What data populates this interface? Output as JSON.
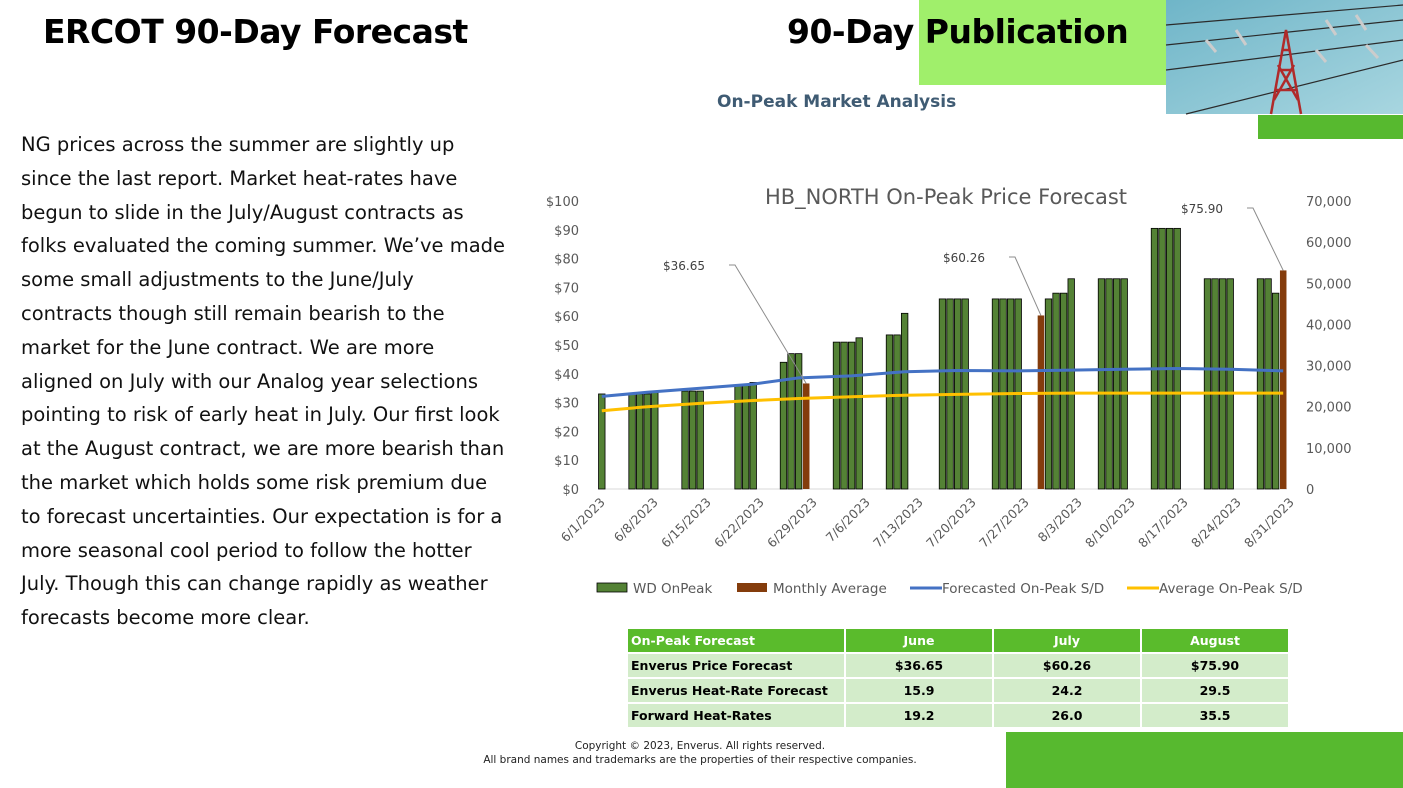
{
  "header": {
    "left_title": "ERCOT 90-Day Forecast",
    "right_title": "90-Day Publication",
    "subtitle": "On-Peak Market Analysis"
  },
  "commentary": "NG prices across the summer are slightly up since the last report. Market heat-rates have begun to slide in the July/August contracts as folks evaluated the coming summer. We’ve made some small adjustments to the June/July contracts though still remain bearish to the market for the June contract. We are more aligned on July with our Analog year selections pointing to risk of early heat in July. Our first look at the August contract, we are more bearish than the market which holds some risk premium due to forecast uncertainties. Our expectation is for a more seasonal cool period to follow the hotter July. Though this can change rapidly as weather forecasts become more clear.",
  "chart_data": {
    "type": "bar",
    "title": "HB_NORTH On-Peak Price Forecast",
    "x_tick_labels": [
      "6/1/2023",
      "6/8/2023",
      "6/15/2023",
      "6/22/2023",
      "6/29/2023",
      "7/6/2023",
      "7/13/2023",
      "7/20/2023",
      "7/27/2023",
      "8/3/2023",
      "8/10/2023",
      "8/17/2023",
      "8/24/2023",
      "8/31/2023"
    ],
    "y_left": {
      "ticks": [
        "$0",
        "$10",
        "$20",
        "$30",
        "$40",
        "$50",
        "$60",
        "$70",
        "$80",
        "$90",
        "$100"
      ],
      "range": [
        0,
        100
      ]
    },
    "y_right": {
      "ticks": [
        "0",
        "10,000",
        "20,000",
        "30,000",
        "40,000",
        "50,000",
        "60,000",
        "70,000"
      ],
      "range": [
        0,
        70000
      ]
    },
    "wd_onpeak": [
      {
        "slot": 0,
        "v": 33
      },
      {
        "slot": 4,
        "v": 33
      },
      {
        "slot": 5,
        "v": 33
      },
      {
        "slot": 6,
        "v": 33
      },
      {
        "slot": 7,
        "v": 34
      },
      {
        "slot": 11,
        "v": 34
      },
      {
        "slot": 12,
        "v": 34
      },
      {
        "slot": 13,
        "v": 34
      },
      {
        "slot": 18,
        "v": 36
      },
      {
        "slot": 19,
        "v": 36
      },
      {
        "slot": 20,
        "v": 37
      },
      {
        "slot": 24,
        "v": 44
      },
      {
        "slot": 25,
        "v": 47
      },
      {
        "slot": 26,
        "v": 47
      },
      {
        "slot": 31,
        "v": 51
      },
      {
        "slot": 32,
        "v": 51
      },
      {
        "slot": 33,
        "v": 51
      },
      {
        "slot": 34,
        "v": 52.5
      },
      {
        "slot": 38,
        "v": 53.5
      },
      {
        "slot": 39,
        "v": 53.5
      },
      {
        "slot": 40,
        "v": 61
      },
      {
        "slot": 45,
        "v": 66
      },
      {
        "slot": 46,
        "v": 66
      },
      {
        "slot": 47,
        "v": 66
      },
      {
        "slot": 48,
        "v": 66
      },
      {
        "slot": 52,
        "v": 66
      },
      {
        "slot": 53,
        "v": 66
      },
      {
        "slot": 54,
        "v": 66
      },
      {
        "slot": 55,
        "v": 66
      },
      {
        "slot": 59,
        "v": 66
      },
      {
        "slot": 60,
        "v": 68
      },
      {
        "slot": 61,
        "v": 68
      },
      {
        "slot": 62,
        "v": 73
      },
      {
        "slot": 66,
        "v": 73
      },
      {
        "slot": 67,
        "v": 73
      },
      {
        "slot": 68,
        "v": 73
      },
      {
        "slot": 69,
        "v": 73
      },
      {
        "slot": 73,
        "v": 90.5
      },
      {
        "slot": 74,
        "v": 90.5
      },
      {
        "slot": 75,
        "v": 90.5
      },
      {
        "slot": 76,
        "v": 90.5
      },
      {
        "slot": 80,
        "v": 73
      },
      {
        "slot": 81,
        "v": 73
      },
      {
        "slot": 82,
        "v": 73
      },
      {
        "slot": 83,
        "v": 73
      },
      {
        "slot": 87,
        "v": 73
      },
      {
        "slot": 88,
        "v": 73
      },
      {
        "slot": 89,
        "v": 68
      }
    ],
    "monthly_average": [
      {
        "slot": 27,
        "v": 36.65,
        "label": "$36.65"
      },
      {
        "slot": 58,
        "v": 60.26,
        "label": "$60.26"
      },
      {
        "slot": 90,
        "v": 75.9,
        "label": "$75.90"
      }
    ],
    "forecasted_sd": [
      [
        0,
        22500
      ],
      [
        6,
        23500
      ],
      [
        13,
        24500
      ],
      [
        20,
        25500
      ],
      [
        26,
        27000
      ],
      [
        33,
        27500
      ],
      [
        40,
        28500
      ],
      [
        47,
        28800
      ],
      [
        55,
        28700
      ],
      [
        62,
        28900
      ],
      [
        69,
        29100
      ],
      [
        76,
        29300
      ],
      [
        83,
        29100
      ],
      [
        90,
        28700
      ]
    ],
    "average_sd": [
      [
        0,
        19000
      ],
      [
        6,
        20000
      ],
      [
        13,
        20800
      ],
      [
        20,
        21500
      ],
      [
        26,
        22000
      ],
      [
        33,
        22400
      ],
      [
        40,
        22800
      ],
      [
        47,
        23000
      ],
      [
        55,
        23200
      ],
      [
        62,
        23300
      ],
      [
        69,
        23300
      ],
      [
        76,
        23300
      ],
      [
        83,
        23300
      ],
      [
        90,
        23300
      ]
    ],
    "legend": [
      "WD OnPeak",
      "Monthly Average",
      "Forecasted On-Peak S/D",
      "Average On-Peak S/D"
    ],
    "colors": {
      "wd": "#548235",
      "monthly": "#843c0c",
      "forecast_line": "#4472c4",
      "average_line": "#ffc000"
    }
  },
  "table": {
    "headers": [
      "On-Peak Forecast",
      "June",
      "July",
      "August"
    ],
    "rows": [
      [
        "Enverus Price Forecast",
        "$36.65",
        "$60.26",
        "$75.90"
      ],
      [
        "Enverus Heat-Rate Forecast",
        "15.9",
        "24.2",
        "29.5"
      ],
      [
        "Forward Heat-Rates",
        "19.2",
        "26.0",
        "35.5"
      ]
    ]
  },
  "footer": {
    "line1": "Copyright © 2023, Enverus. All rights reserved.",
    "line2": "All brand names and trademarks are the properties of their respective companies."
  }
}
